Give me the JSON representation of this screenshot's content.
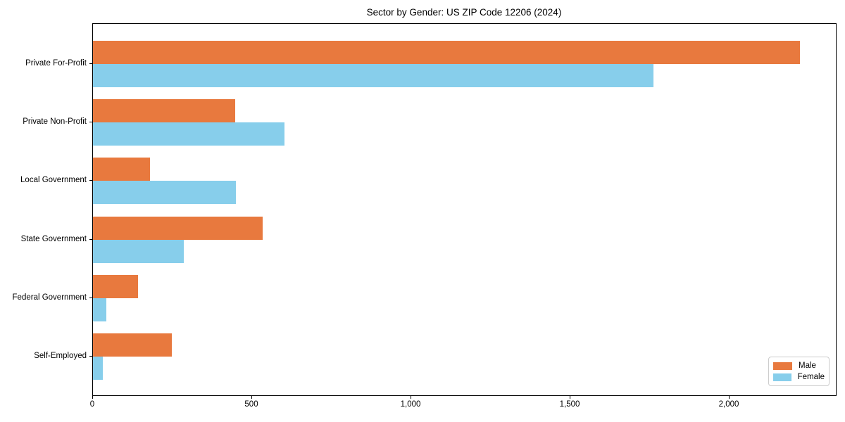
{
  "chart_data": {
    "type": "bar",
    "orientation": "horizontal",
    "title": "Sector by Gender: US ZIP Code 12206 (2024)",
    "categories": [
      "Private For-Profit",
      "Private Non-Profit",
      "Local Government",
      "State Government",
      "Federal Government",
      "Self-Employed"
    ],
    "series": [
      {
        "name": "Male",
        "color": "#e8793e",
        "values": [
          2220,
          447,
          180,
          532,
          142,
          248
        ]
      },
      {
        "name": "Female",
        "color": "#87ceeb",
        "values": [
          1760,
          602,
          449,
          285,
          41,
          31
        ]
      }
    ],
    "xlabel": "",
    "ylabel": "",
    "xlim": [
      0,
      2335
    ],
    "xticks": [
      0,
      500,
      1000,
      1500,
      2000
    ],
    "xtick_labels": [
      "0",
      "500",
      "1,000",
      "1,500",
      "2,000"
    ],
    "grid": false,
    "legend": {
      "position": "lower right",
      "entries": [
        "Male",
        "Female"
      ]
    },
    "spine_color": "#000000",
    "background_color": "#ffffff"
  }
}
